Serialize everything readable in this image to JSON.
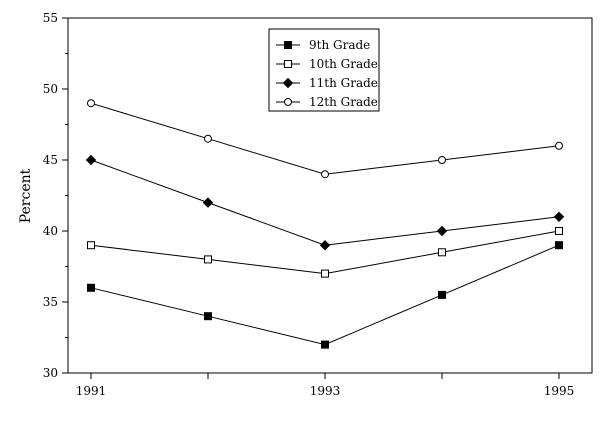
{
  "chart_data": {
    "type": "line",
    "x": [
      1991,
      1992,
      1993,
      1994,
      1995
    ],
    "xticks": [
      1991,
      1992,
      1993,
      1994,
      1995
    ],
    "xtick_labels": [
      "1991",
      "",
      "1993",
      "",
      "1995"
    ],
    "xlim": [
      1991,
      1995
    ],
    "ylim": [
      30,
      55
    ],
    "yticks": [
      30,
      35,
      40,
      45,
      50,
      55
    ],
    "yminor_step": 2.5,
    "ylabel": "Percent",
    "xlabel": "",
    "title": "",
    "grid": false,
    "legend_position": "top-center",
    "series": [
      {
        "name": "9th Grade",
        "marker": "square-filled",
        "values": [
          36,
          34,
          32,
          35.5,
          39
        ]
      },
      {
        "name": "10th Grade",
        "marker": "square-open",
        "values": [
          39,
          38,
          37,
          38.5,
          40
        ]
      },
      {
        "name": "11th Grade",
        "marker": "diamond-filled",
        "values": [
          45,
          42,
          39,
          40,
          41
        ]
      },
      {
        "name": "12th Grade",
        "marker": "circle-open",
        "values": [
          49,
          46.5,
          44,
          45,
          46
        ]
      }
    ]
  }
}
